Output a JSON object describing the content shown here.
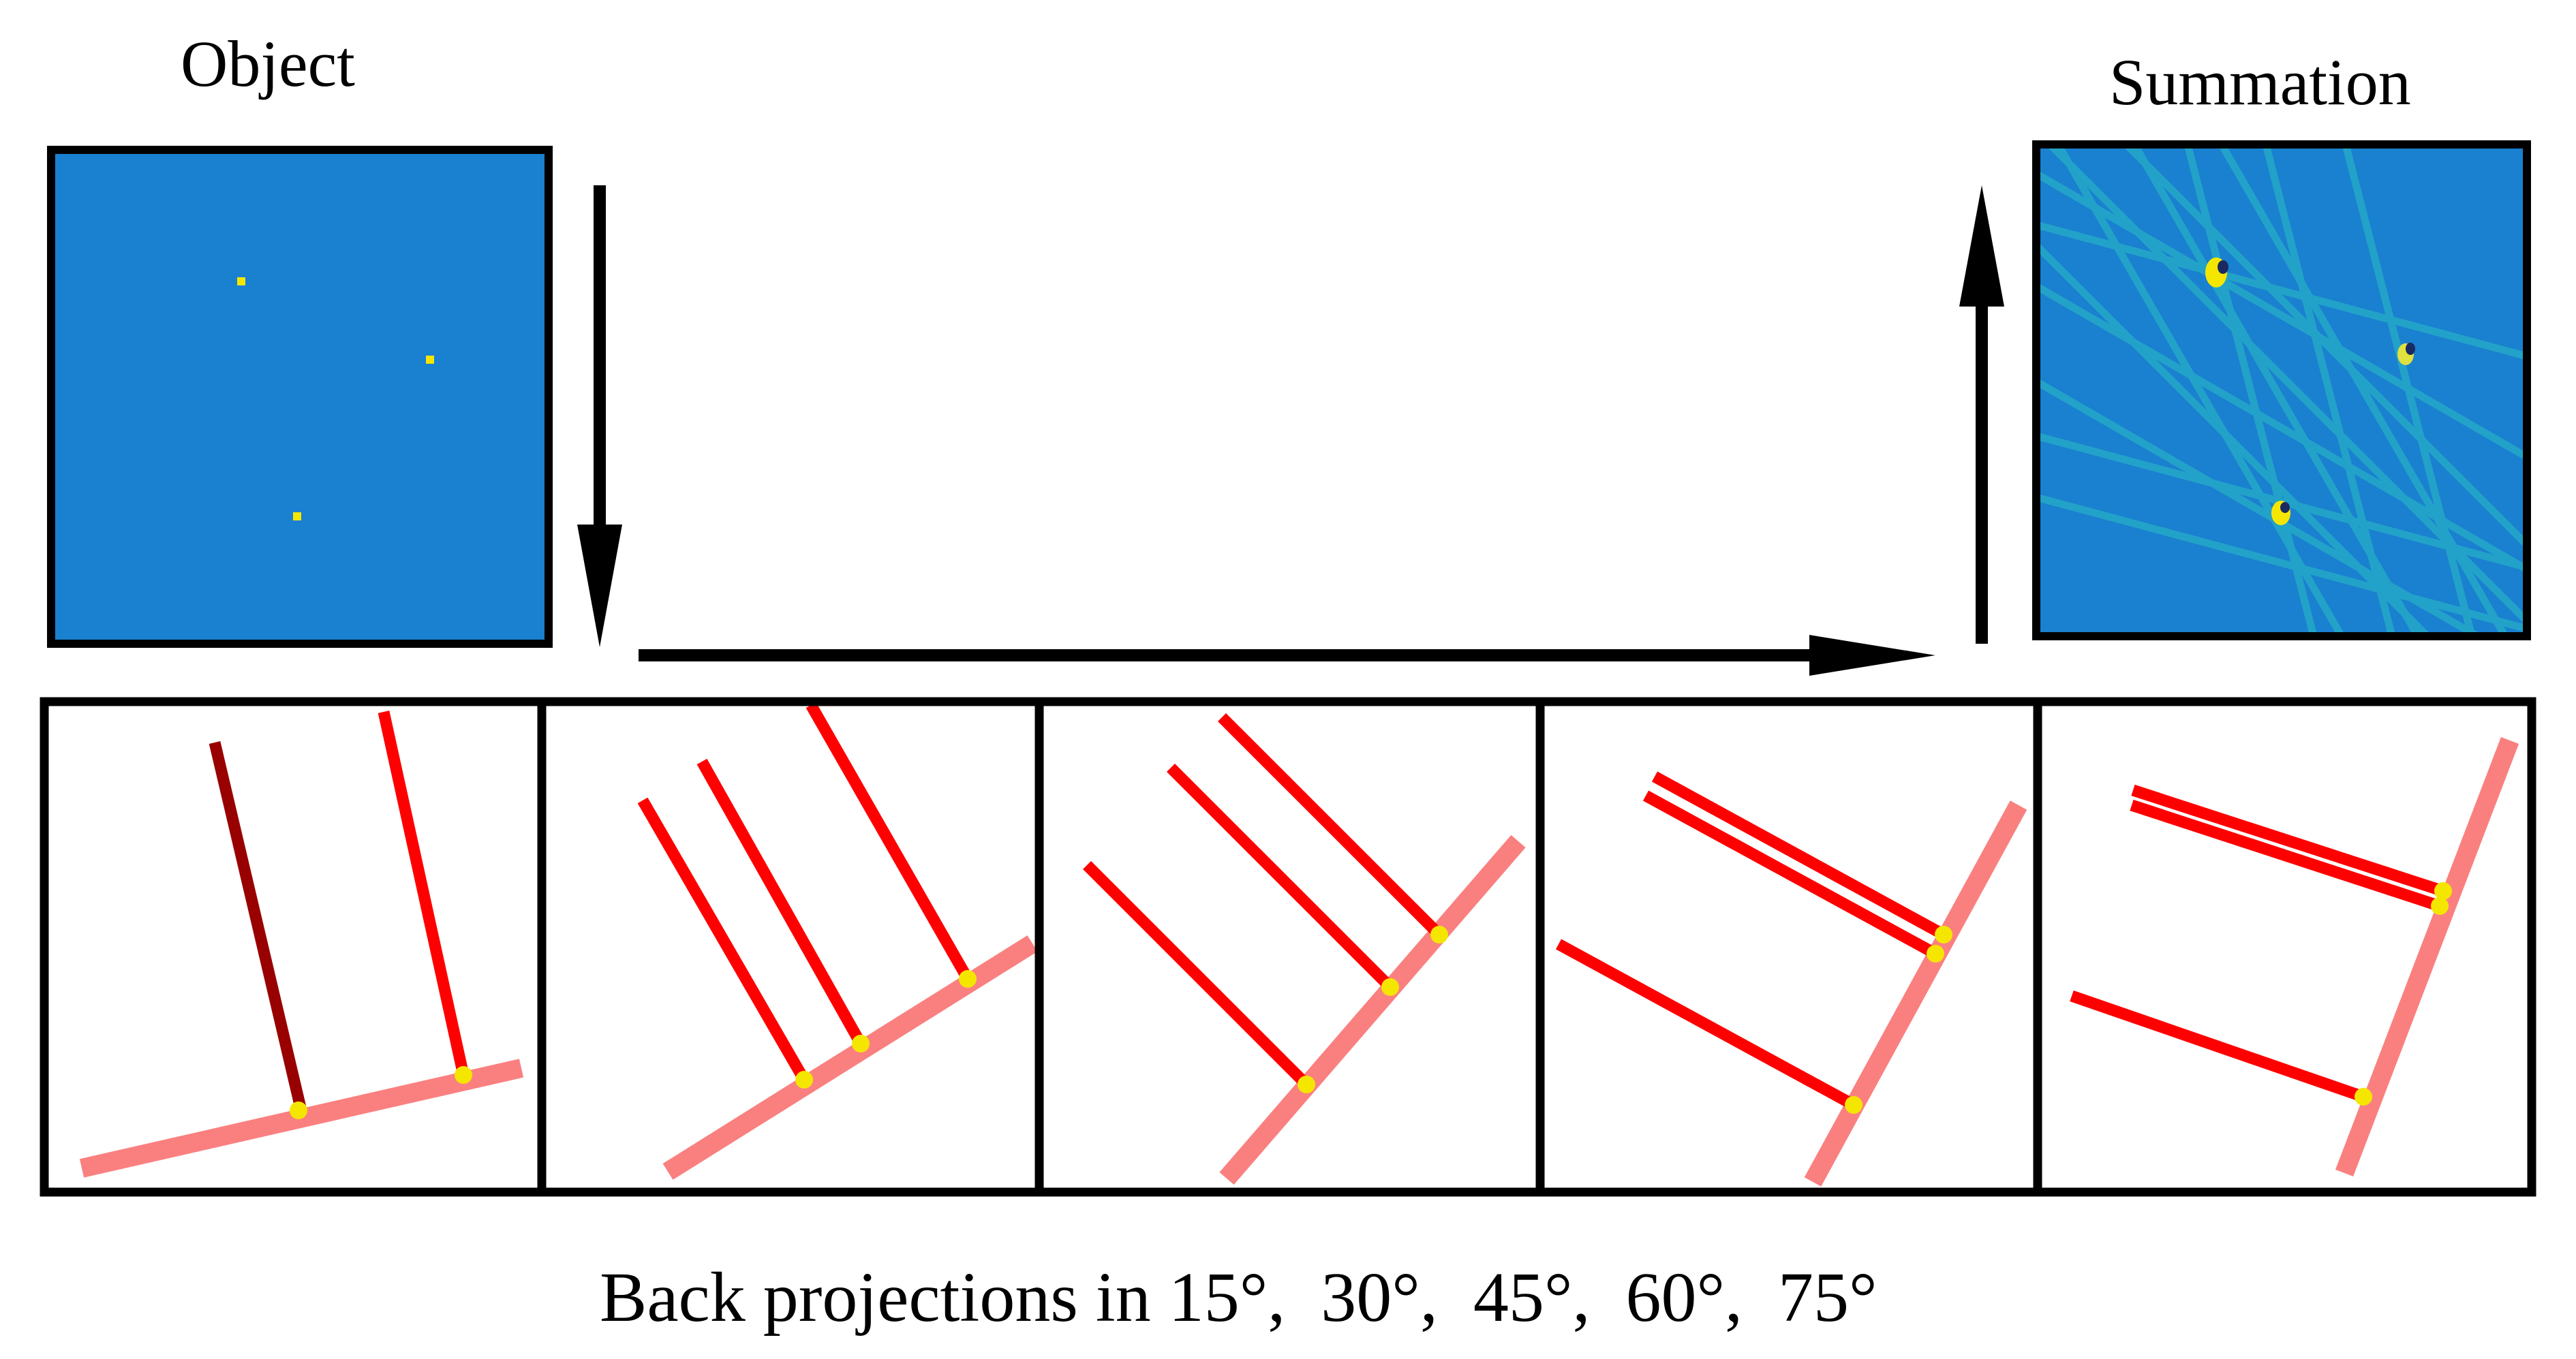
{
  "labels": {
    "object_title": "Object",
    "summation_title": "Summation",
    "caption": "Back projections in 15°,  30°,  45°,  60°,  75°"
  },
  "object_panel": {
    "background_color": "#1a80d0",
    "point_color": "#f5e600",
    "point_count": 3
  },
  "summation_panel": {
    "background_color": "#1a80d0",
    "line_color": "#22a2c8",
    "peak_color": "#f5e600"
  },
  "backprojections": {
    "angles_deg": [
      15,
      30,
      45,
      60,
      75
    ],
    "ray_color": "#ff0000",
    "first_ray_color": "#990000",
    "detector_color": "#fa8080",
    "intersection_color": "#f5e600"
  },
  "arrows": [
    "down-arrow",
    "right-arrow",
    "up-arrow"
  ]
}
